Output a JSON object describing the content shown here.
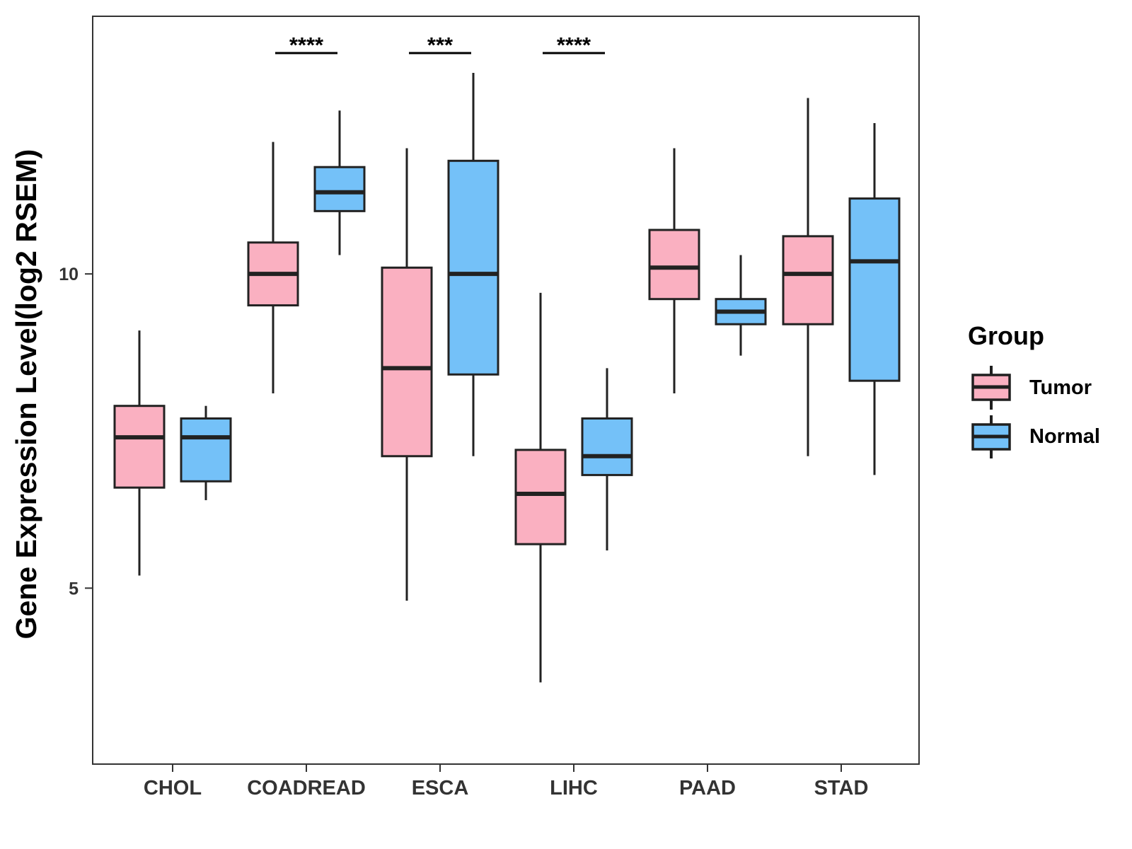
{
  "chart_data": {
    "type": "boxplot",
    "ylabel": "Gene Expression Level(log2 RSEM)",
    "xlabel": "",
    "ylim": [
      2.2,
      14.1
    ],
    "yticks": [
      5,
      10
    ],
    "categories": [
      "CHOL",
      "COADREAD",
      "ESCA",
      "LIHC",
      "PAAD",
      "STAD"
    ],
    "legend": {
      "title": "Group",
      "placement": "right",
      "items": [
        {
          "name": "Tumor",
          "color": "#FAB0C1"
        },
        {
          "name": "Normal",
          "color": "#74C1F8"
        }
      ]
    },
    "series": [
      {
        "name": "Tumor",
        "color": "#FAB0C1",
        "boxes": [
          {
            "category": "CHOL",
            "min": 5.2,
            "q1": 6.6,
            "median": 7.4,
            "q3": 7.9,
            "max": 9.1
          },
          {
            "category": "COADREAD",
            "min": 8.1,
            "q1": 9.5,
            "median": 10.0,
            "q3": 10.5,
            "max": 12.1
          },
          {
            "category": "ESCA",
            "min": 4.8,
            "q1": 7.1,
            "median": 8.5,
            "q3": 10.1,
            "max": 12.0
          },
          {
            "category": "LIHC",
            "min": 3.5,
            "q1": 5.7,
            "median": 6.5,
            "q3": 7.2,
            "max": 9.7
          },
          {
            "category": "PAAD",
            "min": 8.1,
            "q1": 9.6,
            "median": 10.1,
            "q3": 10.7,
            "max": 12.0
          },
          {
            "category": "STAD",
            "min": 7.1,
            "q1": 9.2,
            "median": 10.0,
            "q3": 10.6,
            "max": 12.8
          }
        ]
      },
      {
        "name": "Normal",
        "color": "#74C1F8",
        "boxes": [
          {
            "category": "CHOL",
            "min": 6.4,
            "q1": 6.7,
            "median": 7.4,
            "q3": 7.7,
            "max": 7.9
          },
          {
            "category": "COADREAD",
            "min": 10.3,
            "q1": 11.0,
            "median": 11.3,
            "q3": 11.7,
            "max": 12.6
          },
          {
            "category": "ESCA",
            "min": 7.1,
            "q1": 8.4,
            "median": 10.0,
            "q3": 11.8,
            "max": 13.2
          },
          {
            "category": "LIHC",
            "min": 5.6,
            "q1": 6.8,
            "median": 7.1,
            "q3": 7.7,
            "max": 8.5
          },
          {
            "category": "PAAD",
            "min": 8.7,
            "q1": 9.2,
            "median": 9.4,
            "q3": 9.6,
            "max": 10.3
          },
          {
            "category": "STAD",
            "min": 6.8,
            "q1": 8.3,
            "median": 10.2,
            "q3": 11.2,
            "max": 12.4
          }
        ]
      }
    ],
    "significance": [
      {
        "category": "CHOL",
        "label": ""
      },
      {
        "category": "COADREAD",
        "label": "****"
      },
      {
        "category": "ESCA",
        "label": "***"
      },
      {
        "category": "LIHC",
        "label": "****"
      },
      {
        "category": "PAAD",
        "label": ""
      },
      {
        "category": "STAD",
        "label": ""
      }
    ]
  }
}
